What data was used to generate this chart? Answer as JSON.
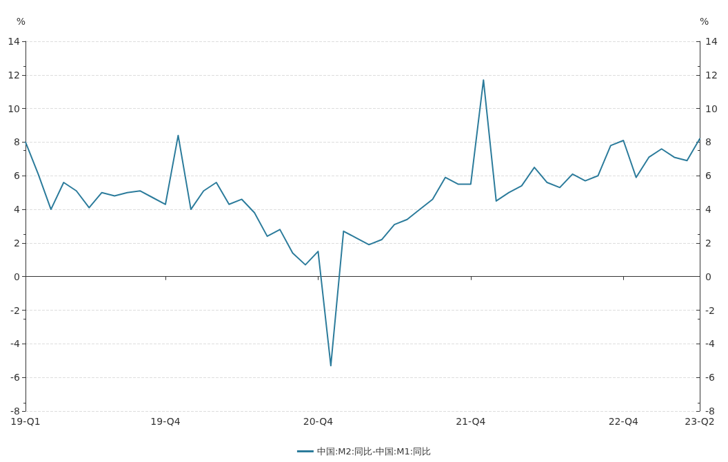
{
  "chart_data": {
    "type": "line",
    "categories": [
      "19-Q1",
      null,
      null,
      null,
      null,
      null,
      null,
      null,
      null,
      null,
      null,
      "19-Q4",
      null,
      null,
      null,
      null,
      null,
      null,
      null,
      null,
      null,
      null,
      null,
      "20-Q4",
      null,
      null,
      null,
      null,
      null,
      null,
      null,
      null,
      null,
      null,
      null,
      "21-Q4",
      null,
      null,
      null,
      null,
      null,
      null,
      null,
      null,
      null,
      null,
      null,
      "22-Q4",
      null,
      null,
      null,
      null,
      null,
      "23-Q2"
    ],
    "series": [
      {
        "name": "中国:M2:同比-中国:M1:同比",
        "color": "#2b7b9b",
        "values": [
          8.0,
          6.1,
          4.0,
          5.6,
          5.1,
          4.1,
          5.0,
          4.8,
          5.0,
          5.1,
          4.7,
          4.3,
          8.4,
          4.0,
          5.1,
          5.6,
          4.3,
          4.6,
          3.8,
          2.4,
          2.8,
          1.4,
          0.7,
          1.5,
          -5.3,
          2.7,
          2.3,
          1.9,
          2.2,
          3.1,
          3.4,
          4.0,
          4.6,
          5.9,
          5.5,
          5.5,
          11.7,
          4.5,
          5.0,
          5.4,
          6.5,
          5.6,
          5.3,
          6.1,
          5.7,
          6.0,
          7.8,
          8.1,
          5.9,
          7.1,
          7.6,
          7.1,
          6.9,
          8.2
        ]
      }
    ],
    "ylabel": "%",
    "y2label": "%",
    "ylim": [
      -8,
      14
    ],
    "yticks": [
      -8,
      -6,
      -4,
      -2,
      0,
      2,
      4,
      6,
      8,
      10,
      12,
      14
    ],
    "y2lim": [
      -8,
      14
    ],
    "y2ticks": [
      -8,
      -6,
      -4,
      -2,
      0,
      2,
      4,
      6,
      8,
      10,
      12,
      14
    ],
    "grid": "y",
    "legend": "bottom",
    "marker": "none",
    "line_style": "solid"
  }
}
